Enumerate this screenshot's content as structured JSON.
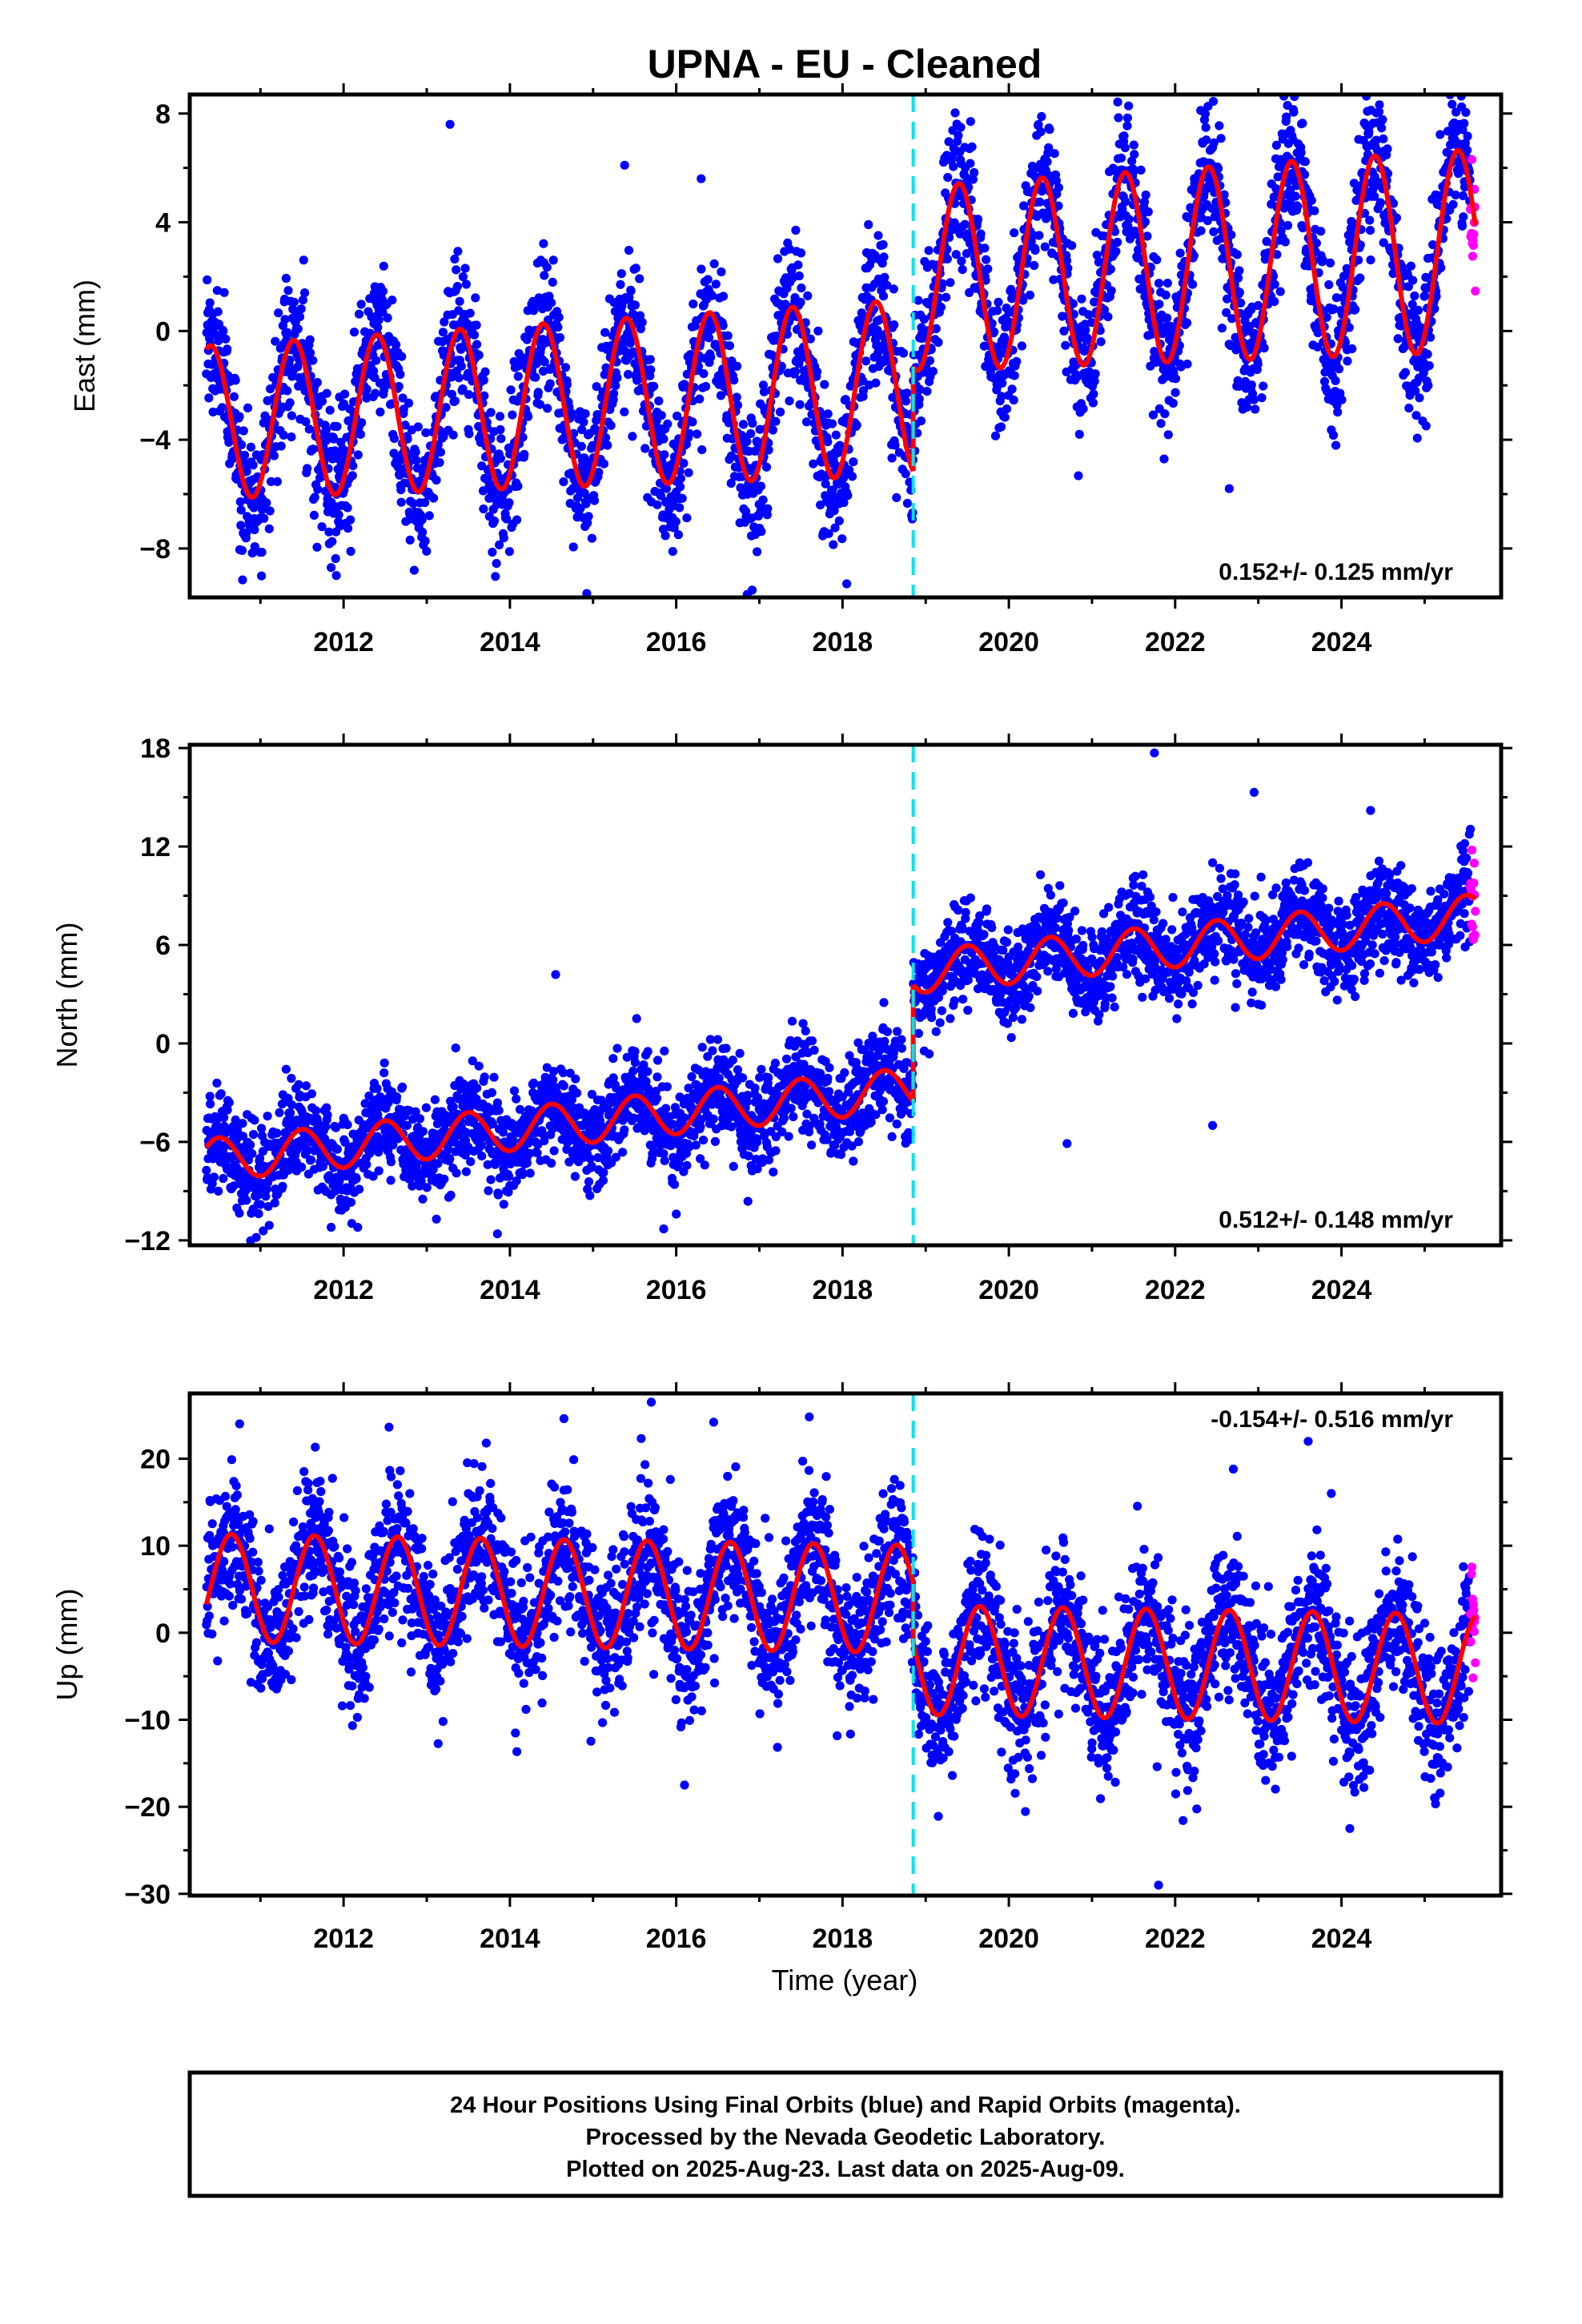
{
  "figure": {
    "title": "UPNA  - EU - Cleaned",
    "xlabel": "Time (year)"
  },
  "footer": {
    "lines": [
      "24 Hour Positions Using Final Orbits (blue) and Rapid Orbits (magenta).",
      "Processed by the Nevada Geodetic Laboratory.",
      "Plotted on 2025-Aug-23. Last data on 2025-Aug-09."
    ]
  },
  "colors": {
    "final_orbits": "#0000ff",
    "rapid_orbits": "#ff00ff",
    "model_fit": "#ff0000",
    "equipment_change": "#00e5ee",
    "frame": "#000000"
  },
  "chart_data": [
    {
      "type": "scatter",
      "panel": "east",
      "ylabel": "East (mm)",
      "xlim": [
        2010.15,
        2025.92
      ],
      "ylim": [
        -9.8,
        8.7
      ],
      "xticks": [
        2012,
        2014,
        2016,
        2018,
        2020,
        2022,
        2024
      ],
      "yticks": [
        -8,
        -4,
        0,
        4,
        8
      ],
      "yticklabels": [
        "−8",
        "−4",
        "0",
        "4",
        "8"
      ],
      "rate_text": "0.152+/- 0.125 mm/yr",
      "rate_position": "bottom-right",
      "data_start": 2010.35,
      "final_end": 2025.55,
      "rapid_end": 2025.61,
      "offset_epoch": 2018.85,
      "model": {
        "before": {
          "intercept": -2.2,
          "amplitude": 3.2,
          "amp_growth": 0.05,
          "peak_phase": 0.4
        },
        "after": {
          "intercept": 1.8,
          "amplitude": 3.35,
          "amp_growth": 0.05,
          "peak_phase": 0.4
        },
        "slope": 0.152,
        "ref_epoch": 2018
      },
      "noise_std": 1.35,
      "outliers": [
        {
          "x": 2013.28,
          "y": 7.6
        },
        {
          "x": 2015.38,
          "y": 6.1
        },
        {
          "x": 2016.3,
          "y": 5.6
        },
        {
          "x": 2023.35,
          "y": 8.3
        },
        {
          "x": 2022.65,
          "y": -5.8
        },
        {
          "x": 2018.05,
          "y": -9.3
        },
        {
          "x": 2011.85,
          "y": -8.7
        },
        {
          "x": 2012.85,
          "y": -8.8
        }
      ]
    },
    {
      "type": "scatter",
      "panel": "north",
      "ylabel": "North (mm)",
      "xlim": [
        2010.15,
        2025.92
      ],
      "ylim": [
        -12.3,
        18.2
      ],
      "xticks": [
        2012,
        2014,
        2016,
        2018,
        2020,
        2022,
        2024
      ],
      "yticks": [
        -12,
        -6,
        0,
        6,
        12,
        18
      ],
      "yticklabels": [
        "−12",
        "−6",
        "0",
        "6",
        "12",
        "18"
      ],
      "rate_text": "0.512+/- 0.148 mm/yr",
      "rate_position": "bottom-right",
      "data_start": 2010.35,
      "final_end": 2025.55,
      "rapid_end": 2025.61,
      "offset_epoch": 2018.85,
      "model": {
        "before": {
          "intercept": -3.2,
          "amplitude": 1.3,
          "amp_growth": 0.0,
          "peak_phase": 0.5
        },
        "after": {
          "intercept": 3.9,
          "amplitude": 1.3,
          "amp_growth": 0.0,
          "peak_phase": 0.5
        },
        "slope": 0.512,
        "ref_epoch": 2018
      },
      "noise_std": 1.45,
      "outliers": [
        {
          "x": 2021.75,
          "y": 17.7
        },
        {
          "x": 2022.95,
          "y": 15.3
        },
        {
          "x": 2024.35,
          "y": 14.2
        },
        {
          "x": 2014.55,
          "y": 4.2
        },
        {
          "x": 2020.7,
          "y": -6.1
        },
        {
          "x": 2022.45,
          "y": -5.0
        },
        {
          "x": 2013.85,
          "y": -11.6
        },
        {
          "x": 2015.85,
          "y": -11.3
        },
        {
          "x": 2011.85,
          "y": -11.2
        }
      ]
    },
    {
      "type": "scatter",
      "panel": "up",
      "ylabel": "Up (mm)",
      "xlim": [
        2010.15,
        2025.92
      ],
      "ylim": [
        -30.2,
        27.5
      ],
      "xticks": [
        2012,
        2014,
        2016,
        2018,
        2020,
        2022,
        2024
      ],
      "yticks": [
        -30,
        -20,
        -10,
        0,
        10,
        20
      ],
      "yticklabels": [
        "−30",
        "−20",
        "−10",
        "0",
        "10",
        "20"
      ],
      "rate_text": "-0.154+/- 0.516 mm/yr",
      "rate_position": "top-right",
      "data_start": 2010.35,
      "final_end": 2025.55,
      "rapid_end": 2025.61,
      "offset_epoch": 2018.85,
      "model": {
        "before": {
          "intercept": 4.0,
          "amplitude": 6.2,
          "amp_growth": 0.0,
          "peak_phase": 0.65
        },
        "after": {
          "intercept": -3.0,
          "amplitude": 6.3,
          "amp_growth": 0.0,
          "peak_phase": 0.65
        },
        "slope": -0.154,
        "ref_epoch": 2018
      },
      "noise_std": 4.3,
      "outliers": [
        {
          "x": 2015.7,
          "y": 26.5
        },
        {
          "x": 2010.75,
          "y": 24.0
        },
        {
          "x": 2016.45,
          "y": 24.2
        },
        {
          "x": 2014.65,
          "y": 24.6
        },
        {
          "x": 2017.6,
          "y": 24.8
        },
        {
          "x": 2023.6,
          "y": 22.0
        },
        {
          "x": 2021.8,
          "y": -29.0
        },
        {
          "x": 2024.1,
          "y": -22.5
        },
        {
          "x": 2016.1,
          "y": -17.5
        },
        {
          "x": 2022.7,
          "y": 18.8
        }
      ]
    }
  ]
}
